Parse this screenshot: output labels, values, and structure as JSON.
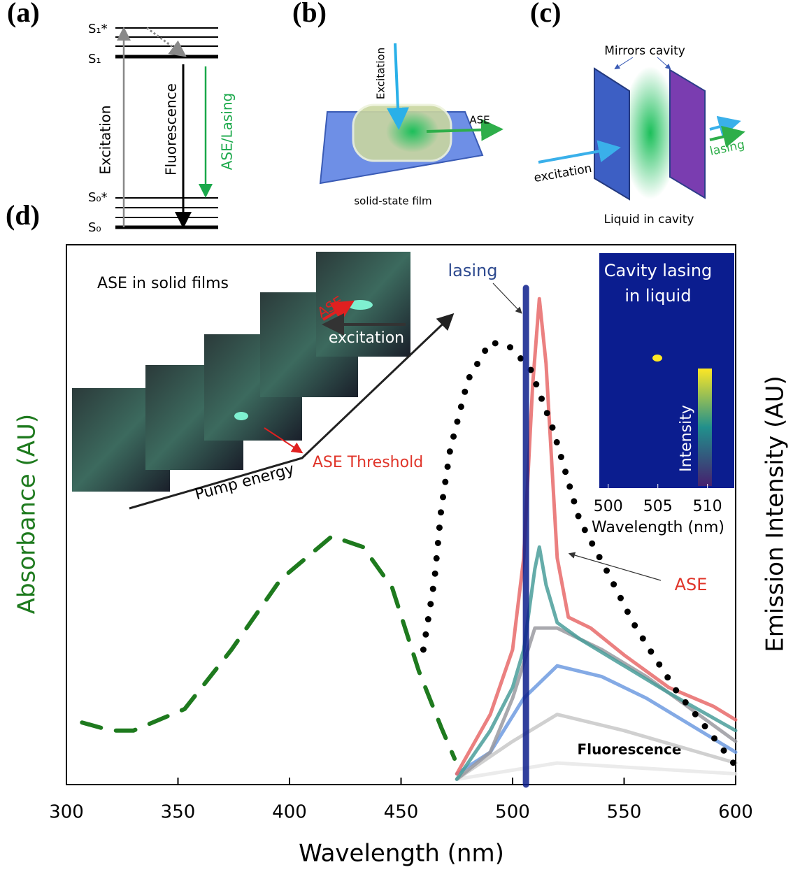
{
  "panel_a": {
    "label": "(a)",
    "levels": [
      "S₁*",
      "S₁",
      "S₀*",
      "S₀"
    ],
    "excitation": "Excitation",
    "fluorescence": "Fluorescence",
    "ase_lasing": "ASE/Lasing"
  },
  "panel_b": {
    "label": "(b)",
    "excitation": "Excitation",
    "ase": "ASE",
    "caption": "solid-state film"
  },
  "panel_c": {
    "label": "(c)",
    "mirrors": "Mirrors cavity",
    "excitation": "excitation",
    "lasing": "lasing",
    "caption": "Liquid in cavity"
  },
  "chart_data": {
    "type": "line",
    "label": "(d)",
    "x_label": "Wavelength (nm)",
    "y_label": "Absorbance (AU)",
    "y2_label": "Emission Intensity (AU)",
    "xlim": [
      300,
      600
    ],
    "xticks": [
      300,
      350,
      400,
      450,
      500,
      550,
      600
    ],
    "ylim": [
      0,
      1
    ],
    "series": [
      {
        "color": "#1e7a1e",
        "style": "dashed",
        "width": 6,
        "x": [
          307,
          320,
          330,
          353,
          374,
          396,
          419,
          433,
          446,
          458,
          468,
          474
        ],
        "values": [
          0.115,
          0.1,
          0.1,
          0.14,
          0.25,
          0.38,
          0.46,
          0.44,
          0.365,
          0.21,
          0.106,
          0.048
        ]
      },
      {
        "color": "#e8e8e8",
        "style": "solid",
        "width": 5,
        "x": [
          475,
          520,
          560,
          600
        ],
        "values": [
          0.01,
          0.04,
          0.03,
          0.02
        ]
      },
      {
        "color": "#c8c8c8",
        "style": "solid",
        "width": 5,
        "x": [
          475,
          500,
          520,
          550,
          600
        ],
        "values": [
          0.01,
          0.08,
          0.13,
          0.1,
          0.04
        ]
      },
      {
        "color": "#6f9be0",
        "style": "solid",
        "width": 5,
        "x": [
          475,
          490,
          505,
          520,
          540,
          560,
          600
        ],
        "values": [
          0.02,
          0.06,
          0.16,
          0.22,
          0.2,
          0.16,
          0.06
        ]
      },
      {
        "color": "#9a9aa0",
        "style": "solid",
        "width": 5,
        "x": [
          475,
          490,
          500,
          510,
          520,
          540,
          560,
          600
        ],
        "values": [
          0.01,
          0.06,
          0.16,
          0.29,
          0.29,
          0.25,
          0.2,
          0.08
        ]
      },
      {
        "color": "#4a9d9a",
        "style": "solid",
        "width": 5,
        "x": [
          475,
          490,
          500,
          505,
          510,
          512,
          515,
          520,
          530,
          550,
          570,
          600
        ],
        "values": [
          0.01,
          0.1,
          0.18,
          0.25,
          0.4,
          0.44,
          0.37,
          0.3,
          0.27,
          0.22,
          0.17,
          0.1
        ]
      },
      {
        "color": "#e86a6a",
        "style": "solid",
        "width": 5,
        "x": [
          475,
          490,
          500,
          505,
          509,
          512,
          515,
          520,
          525,
          535,
          550,
          570,
          590,
          600
        ],
        "values": [
          0.02,
          0.13,
          0.25,
          0.42,
          0.74,
          0.9,
          0.78,
          0.42,
          0.31,
          0.29,
          0.24,
          0.18,
          0.145,
          0.12
        ]
      },
      {
        "color": "#000000",
        "style": "dotted",
        "width": 9,
        "x": [
          460,
          465,
          468,
          472,
          480,
          490,
          499,
          508,
          518,
          530,
          543,
          554,
          563,
          574,
          584,
          599
        ],
        "values": [
          0.25,
          0.38,
          0.51,
          0.62,
          0.75,
          0.82,
          0.81,
          0.77,
          0.66,
          0.49,
          0.39,
          0.3,
          0.24,
          0.17,
          0.12,
          0.04
        ]
      },
      {
        "color": "#0d1f8c",
        "style": "solid",
        "width": 9,
        "x": [
          506,
          506
        ],
        "values": [
          0,
          0.92
        ]
      }
    ],
    "annotations": {
      "films": "ASE in solid films",
      "pump": "Pump energy",
      "threshold": "ASE Threshold",
      "photo_ase": "ASE",
      "photo_excitation": "excitation",
      "lasing": "lasing",
      "ase": "ASE",
      "fluorescence": "Fluorescence"
    },
    "inset": {
      "title": [
        "Cavity lasing",
        "in liquid"
      ],
      "colorbar_label": "Intensity",
      "x_label": "Wavelength (nm)",
      "xlim": [
        499.1,
        512.7
      ],
      "xticks": [
        500,
        505,
        510
      ]
    }
  }
}
